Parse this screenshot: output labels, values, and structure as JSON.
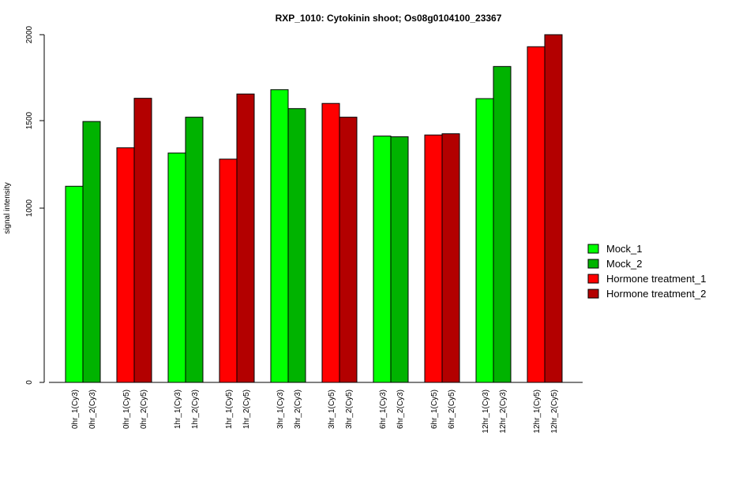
{
  "chart_data": {
    "type": "bar",
    "title": "RXP_1010: Cytokinin shoot; Os08g0104100_23367",
    "ylabel": "signal intensity",
    "xlabel": "",
    "ylim": [
      0,
      2000
    ],
    "yticks": [
      0,
      1000,
      1500,
      2000
    ],
    "legend_position": "right",
    "series": [
      {
        "name": "Mock_1",
        "color": "#00FF00"
      },
      {
        "name": "Mock_2",
        "color": "#00B300"
      },
      {
        "name": "Hormone treatment_1",
        "color": "#FF0000"
      },
      {
        "name": "Hormone treatment_2",
        "color": "#B30000"
      }
    ],
    "groups": [
      {
        "bars": [
          {
            "label": "0hr_1(Cy3)",
            "value": 1125,
            "series": 0
          },
          {
            "label": "0hr_2(Cy3)",
            "value": 1495,
            "series": 1
          }
        ]
      },
      {
        "bars": [
          {
            "label": "0hr_1(Cy5)",
            "value": 1345,
            "series": 2
          },
          {
            "label": "0hr_2(Cy5)",
            "value": 1630,
            "series": 3
          }
        ]
      },
      {
        "bars": [
          {
            "label": "1hr_1(Cy3)",
            "value": 1315,
            "series": 0
          },
          {
            "label": "1hr_2(Cy3)",
            "value": 1520,
            "series": 1
          }
        ]
      },
      {
        "bars": [
          {
            "label": "1hr_1(Cy5)",
            "value": 1280,
            "series": 2
          },
          {
            "label": "1hr_2(Cy5)",
            "value": 1655,
            "series": 3
          }
        ]
      },
      {
        "bars": [
          {
            "label": "3hr_1(Cy3)",
            "value": 1680,
            "series": 0
          },
          {
            "label": "3hr_2(Cy3)",
            "value": 1570,
            "series": 1
          }
        ]
      },
      {
        "bars": [
          {
            "label": "3hr_1(Cy5)",
            "value": 1600,
            "series": 2
          },
          {
            "label": "3hr_2(Cy5)",
            "value": 1520,
            "series": 3
          }
        ]
      },
      {
        "bars": [
          {
            "label": "6hr_1(Cy3)",
            "value": 1412,
            "series": 0
          },
          {
            "label": "6hr_2(Cy3)",
            "value": 1408,
            "series": 1
          }
        ]
      },
      {
        "bars": [
          {
            "label": "6hr_1(Cy5)",
            "value": 1418,
            "series": 2
          },
          {
            "label": "6hr_2(Cy5)",
            "value": 1425,
            "series": 3
          }
        ]
      },
      {
        "bars": [
          {
            "label": "12hr_1(Cy3)",
            "value": 1628,
            "series": 0
          },
          {
            "label": "12hr_2(Cy3)",
            "value": 1815,
            "series": 1
          }
        ]
      },
      {
        "bars": [
          {
            "label": "12hr_1(Cy5)",
            "value": 1930,
            "series": 2
          },
          {
            "label": "12hr_2(Cy5)",
            "value": 2000,
            "series": 3
          }
        ]
      }
    ]
  }
}
